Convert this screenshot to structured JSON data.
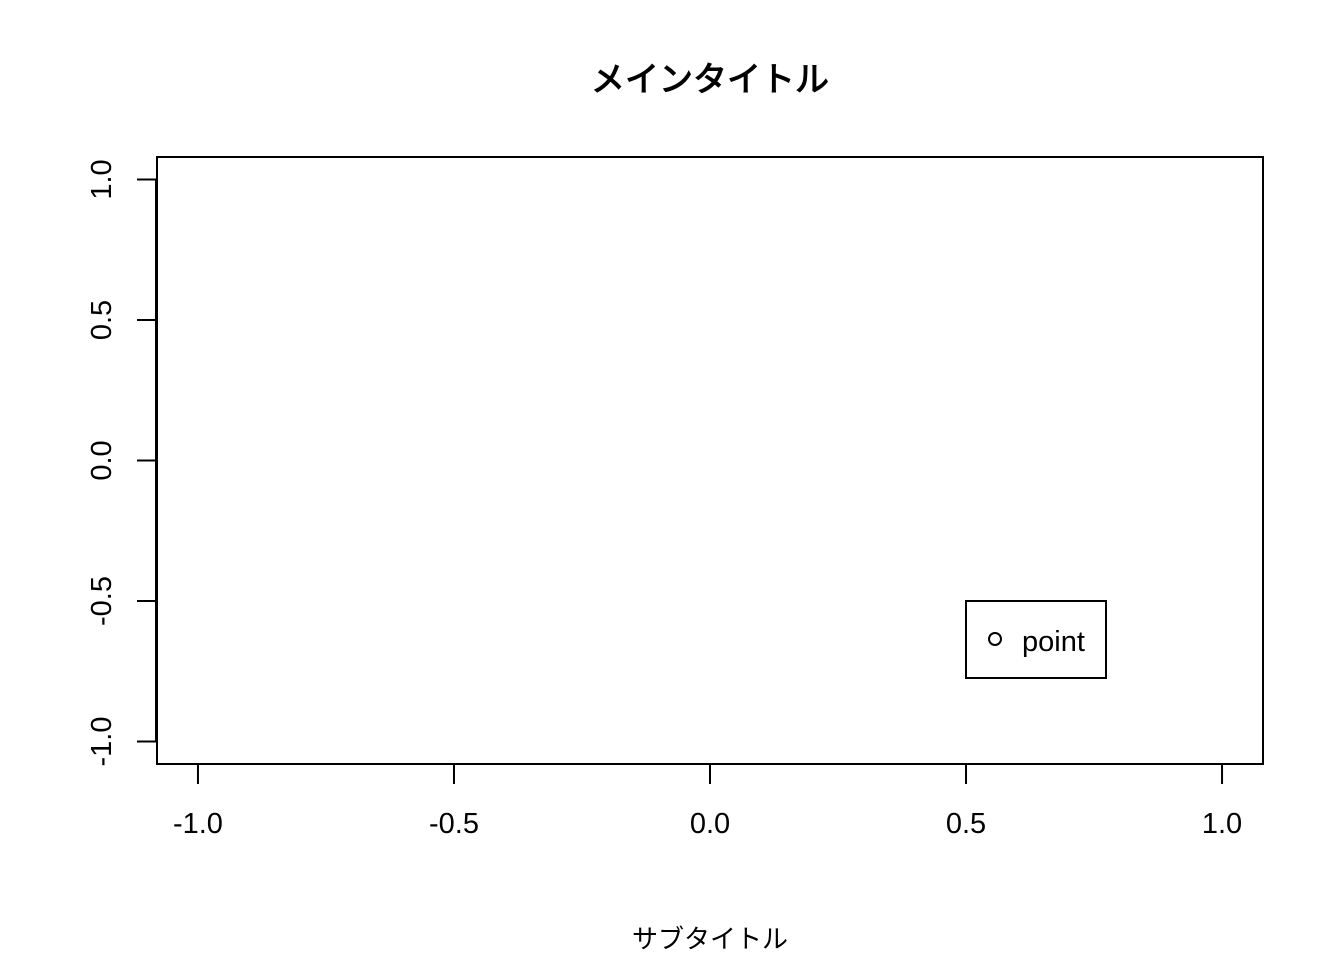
{
  "chart_data": {
    "type": "scatter",
    "title": "メインタイトル",
    "subtitle": "サブタイトル",
    "xlabel": "",
    "ylabel": "",
    "xlim": [
      -1.08,
      1.08
    ],
    "ylim": [
      -1.08,
      1.08
    ],
    "x_ticks": [
      -1.0,
      -0.5,
      0.0,
      0.5,
      1.0
    ],
    "x_tick_labels": [
      "-1.0",
      "-0.5",
      "0.0",
      "0.5",
      "1.0"
    ],
    "y_ticks": [
      -1.0,
      -0.5,
      0.0,
      0.5,
      1.0
    ],
    "y_tick_labels": [
      "-1.0",
      "-0.5",
      "0.0",
      "0.5",
      "1.0"
    ],
    "grid": false,
    "points": [],
    "legend": {
      "placement": "bottom-right",
      "entries": [
        {
          "label": "point",
          "marker": "open-circle"
        }
      ]
    },
    "colors": {
      "axis": "#000000",
      "background": "#ffffff",
      "marker": "#000000"
    }
  }
}
